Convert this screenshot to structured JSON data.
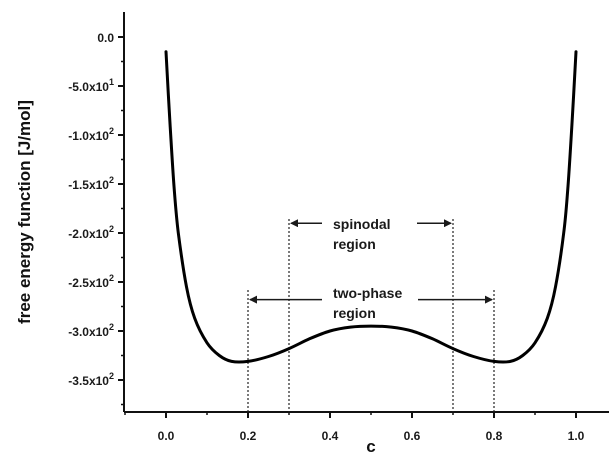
{
  "chart_data": {
    "type": "line",
    "title": "",
    "xlabel": "c",
    "ylabel": "free energy function [J/mol]",
    "xlim": [
      -0.2,
      1.1
    ],
    "ylim": [
      -372,
      15
    ],
    "grid": false,
    "legend": "none",
    "line_color": "#000000",
    "x_ticks": [
      {
        "value": 0.0,
        "label": "0.0"
      },
      {
        "value": 0.2,
        "label": "0.2"
      },
      {
        "value": 0.4,
        "label": "0.4"
      },
      {
        "value": 0.6,
        "label": "0.6"
      },
      {
        "value": 0.8,
        "label": "0.8"
      },
      {
        "value": 1.0,
        "label": "1.0"
      }
    ],
    "y_ticks": [
      {
        "value": 0,
        "base": "0.0",
        "exp": ""
      },
      {
        "value": -50,
        "base": "-5.0x10",
        "exp": "1"
      },
      {
        "value": -100,
        "base": "-1.0x10",
        "exp": "2"
      },
      {
        "value": -150,
        "base": "-1.5x10",
        "exp": "2"
      },
      {
        "value": -200,
        "base": "-2.0x10",
        "exp": "2"
      },
      {
        "value": -250,
        "base": "-2.5x10",
        "exp": "2"
      },
      {
        "value": -300,
        "base": "-3.0x10",
        "exp": "2"
      },
      {
        "value": -350,
        "base": "-3.5x10",
        "exp": "2"
      }
    ],
    "series": [
      {
        "x": [
          0.0,
          0.01,
          0.02,
          0.03,
          0.05,
          0.07,
          0.1,
          0.13,
          0.16,
          0.2,
          0.25,
          0.3,
          0.35,
          0.4,
          0.45,
          0.5,
          0.55,
          0.6,
          0.65,
          0.7,
          0.75,
          0.8,
          0.84,
          0.87,
          0.9,
          0.93,
          0.95,
          0.97,
          0.98,
          0.99,
          1.0
        ],
        "y": [
          -15,
          -90,
          -155,
          -200,
          -255,
          -287,
          -312,
          -325,
          -331,
          -331,
          -326,
          -318,
          -308,
          -300,
          -296,
          -295,
          -296,
          -300,
          -308,
          -318,
          -326,
          -331,
          -331,
          -325,
          -312,
          -287,
          -255,
          -200,
          -155,
          -90,
          -15
        ]
      }
    ],
    "annotations": {
      "spinodal": {
        "text_line1": "spinodal",
        "text_line2": "region",
        "x_left": 0.3,
        "x_right": 0.7,
        "y": -190
      },
      "two_phase": {
        "text_line1": "two-phase",
        "text_line2": "region",
        "x_left": 0.2,
        "x_right": 0.8,
        "y": -268
      }
    }
  }
}
